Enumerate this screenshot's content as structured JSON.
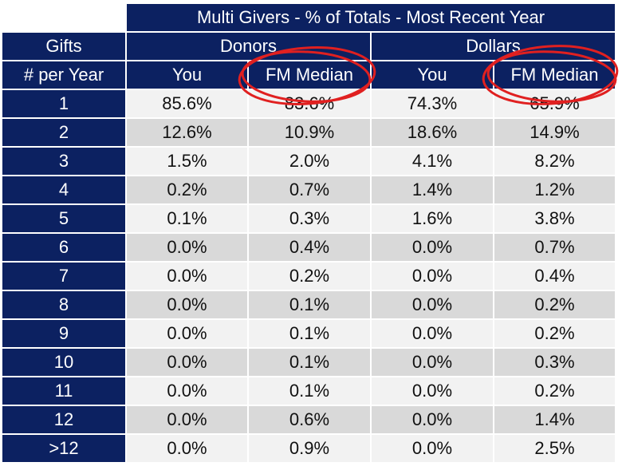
{
  "chart_data": {
    "type": "table",
    "title": "Multi Givers - % of Totals - Most Recent Year",
    "row_header_top": "Gifts",
    "row_header_bottom": "# per Year",
    "groups": [
      "Donors",
      "Dollars"
    ],
    "columns": [
      "You",
      "FM Median",
      "You",
      "FM Median"
    ],
    "rows": [
      {
        "label": "1",
        "values": [
          "85.6%",
          "83.6%",
          "74.3%",
          "65.9%"
        ]
      },
      {
        "label": "2",
        "values": [
          "12.6%",
          "10.9%",
          "18.6%",
          "14.9%"
        ]
      },
      {
        "label": "3",
        "values": [
          "1.5%",
          "2.0%",
          "4.1%",
          "8.2%"
        ]
      },
      {
        "label": "4",
        "values": [
          "0.2%",
          "0.7%",
          "1.4%",
          "1.2%"
        ]
      },
      {
        "label": "5",
        "values": [
          "0.1%",
          "0.3%",
          "1.6%",
          "3.8%"
        ]
      },
      {
        "label": "6",
        "values": [
          "0.0%",
          "0.4%",
          "0.0%",
          "0.7%"
        ]
      },
      {
        "label": "7",
        "values": [
          "0.0%",
          "0.2%",
          "0.0%",
          "0.4%"
        ]
      },
      {
        "label": "8",
        "values": [
          "0.0%",
          "0.1%",
          "0.0%",
          "0.2%"
        ]
      },
      {
        "label": "9",
        "values": [
          "0.0%",
          "0.1%",
          "0.0%",
          "0.2%"
        ]
      },
      {
        "label": "10",
        "values": [
          "0.0%",
          "0.1%",
          "0.0%",
          "0.3%"
        ]
      },
      {
        "label": "11",
        "values": [
          "0.0%",
          "0.1%",
          "0.0%",
          "0.2%"
        ]
      },
      {
        "label": "12",
        "values": [
          "0.0%",
          "0.6%",
          "0.0%",
          "1.4%"
        ]
      },
      {
        "label": ">12",
        "values": [
          "0.0%",
          "0.9%",
          "0.0%",
          "2.5%"
        ]
      }
    ],
    "highlighted_columns": [
      "Donors / FM Median",
      "Dollars / FM Median"
    ],
    "colors": {
      "header": "#0c2161",
      "row_light": "#f2f2f2",
      "row_dark": "#d9d9d9",
      "highlight": "#e02020"
    }
  }
}
